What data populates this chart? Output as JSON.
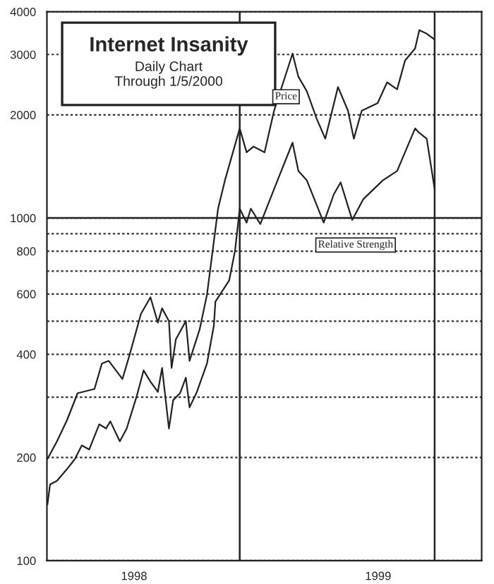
{
  "chart_data": {
    "type": "line",
    "title": "Internet Insanity",
    "subtitle": "Daily Chart\nThrough 1/5/2000",
    "series": [
      {
        "color": "#222222",
        "x": [
          "1998-01-02",
          "1998-01-20",
          "1998-02-08",
          "1998-02-28",
          "1998-04-01",
          "1998-04-15",
          "1998-04-28",
          "1998-05-24",
          "1998-06-07",
          "1998-06-28",
          "1998-07-16",
          "1998-07-30",
          "1998-08-07",
          "1998-08-20",
          "1998-08-25",
          "1998-09-02",
          "1998-09-21",
          "1998-09-28",
          "1998-10-17",
          "1998-10-31",
          "1998-11-21",
          "1998-12-04",
          "1999-01-01",
          "1999-01-14",
          "1999-01-27",
          "1999-02-17",
          "1999-03-07",
          "1999-04-11",
          "1999-04-22",
          "1999-05-08",
          "1999-05-27",
          "1999-06-12",
          "1999-07-06",
          "1999-07-25",
          "1999-08-05",
          "1999-08-20",
          "1999-09-19",
          "1999-10-07",
          "1999-10-26",
          "1999-11-10",
          "1999-11-29",
          "1999-12-07",
          "1999-12-21",
          "2000-01-05"
        ],
        "values": [
          198,
          223,
          257,
          308,
          317,
          376,
          383,
          339,
          401,
          525,
          587,
          495,
          545,
          500,
          365,
          442,
          500,
          383,
          472,
          597,
          1065,
          1288,
          1825,
          1555,
          1616,
          1555,
          2056,
          3018,
          2585,
          2343,
          1943,
          1704,
          2411,
          2056,
          1704,
          2056,
          2163,
          2488,
          2374,
          2881,
          3124,
          3533,
          3449,
          3318
        ]
      },
      {
        "color": "#222222",
        "x": [
          "1998-01-02",
          "1998-01-07",
          "1998-01-20",
          "1998-02-08",
          "1998-02-23",
          "1998-03-08",
          "1998-03-22",
          "1998-04-10",
          "1998-04-23",
          "1998-05-01",
          "1998-05-19",
          "1998-06-01",
          "1998-06-20",
          "1998-07-03",
          "1998-07-16",
          "1998-07-30",
          "1998-08-07",
          "1998-08-20",
          "1998-08-28",
          "1998-09-10",
          "1998-09-21",
          "1998-09-28",
          "1998-10-12",
          "1998-10-31",
          "1998-11-13",
          "1998-11-16",
          "1998-12-12",
          "1998-12-23",
          "1999-01-01",
          "1999-01-14",
          "1999-01-22",
          "1999-02-09",
          "1999-03-07",
          "1999-04-11",
          "1999-04-22",
          "1999-05-08",
          "1999-06-09",
          "1999-06-28",
          "1999-07-11",
          "1999-08-02",
          "1999-08-23",
          "1999-09-29",
          "1999-10-26",
          "1999-11-29",
          "1999-12-07",
          "1999-12-21",
          "2000-01-05"
        ],
        "values": [
          146,
          167,
          171,
          185,
          198,
          217,
          211,
          250,
          243,
          255,
          223,
          243,
          302,
          359,
          333,
          311,
          365,
          243,
          294,
          308,
          342,
          280,
          311,
          376,
          485,
          570,
          657,
          800,
          1065,
          969,
          1065,
          960,
          1214,
          1659,
          1372,
          1288,
          969,
          1171,
          1271,
          987,
          1135,
          1288,
          1372,
          1825,
          1771,
          1704,
          1214
        ]
      }
    ],
    "log": true,
    "ylim": [
      100,
      4000
    ],
    "yticks": [
      100,
      200,
      {
        "value": 300,
        "label": null
      },
      400,
      {
        "value": 500,
        "label": null
      },
      600,
      {
        "value": 700,
        "label": null
      },
      800,
      {
        "value": 900,
        "label": null
      },
      1000,
      2000,
      3000,
      4000
    ],
    "xlim": [
      "1998-01-01",
      "2000-04-03"
    ],
    "xticks": [
      {
        "value": "1998-06-15",
        "label": "1998"
      },
      {
        "value": "1999-09-20",
        "label": "1999"
      }
    ],
    "grid": "y",
    "line_style": "solid",
    "ref_lines": [
      {
        "axis": "y",
        "value": 1000,
        "color": "#222222"
      },
      {
        "axis": "x",
        "value": "1999-01-01",
        "color": "#222222"
      },
      {
        "axis": "x",
        "value": "2000-01-05",
        "color": "#222222"
      }
    ],
    "annotations": [
      "Price",
      "Relative Strength"
    ]
  }
}
